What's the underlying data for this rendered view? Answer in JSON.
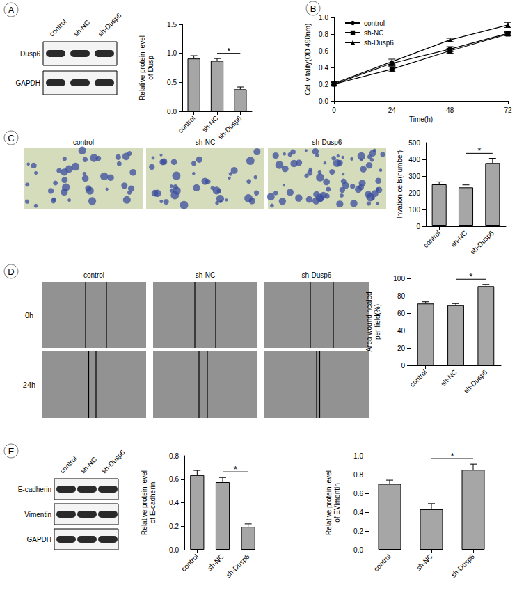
{
  "panels": {
    "labels": [
      "A",
      "B",
      "C",
      "D",
      "E"
    ],
    "lanes": [
      "control",
      "sh-NC",
      "sh-Dusp6"
    ],
    "blot_A_rows": [
      "Dusp6",
      "GAPDH"
    ],
    "wound_rows": [
      "0h",
      "24h"
    ],
    "blot_E_rows": [
      "E-cadherin",
      "Vimentin",
      "GAPDH"
    ]
  },
  "chart_data": [
    {
      "type": "bar",
      "categories": [
        "control",
        "sh-NC",
        "sh-Dusp6"
      ],
      "values": [
        0.91,
        0.87,
        0.38
      ],
      "errors": [
        0.05,
        0.04,
        0.04
      ],
      "ylabel": "Relative protein level\nof Dusp",
      "color": "#a6a6a6",
      "ylim": [
        0,
        1.5
      ],
      "yticks": [
        {
          "value": 0,
          "label": "0.0"
        },
        0.5,
        {
          "value": 1,
          "label": "1.0"
        },
        1.5
      ],
      "grid": false,
      "annotations": [
        {
          "text": "*",
          "from": "sh-NC",
          "to": "sh-Dusp6"
        }
      ]
    },
    {
      "type": "line",
      "x": [
        0,
        24,
        48,
        72
      ],
      "xlabel": "Time(h)",
      "ylabel": "Cell vitality(OD 490nm)",
      "xlim": [
        0,
        72
      ],
      "xticks": [
        0,
        24,
        48,
        72
      ],
      "ylim": [
        0,
        1
      ],
      "yticks": [
        {
          "value": 0,
          "label": "0.0"
        },
        0.2,
        0.4,
        0.6,
        0.8,
        {
          "value": 1,
          "label": "1.0"
        }
      ],
      "grid": false,
      "legend": "upper left",
      "series": [
        {
          "name": "control",
          "color": "#000000",
          "marker": "circle",
          "values": [
            0.2,
            0.45,
            0.62,
            0.81
          ],
          "errors": [
            0.02,
            0.03,
            0.03,
            0.02
          ]
        },
        {
          "name": "sh-NC",
          "color": "#000000",
          "marker": "square",
          "values": [
            0.2,
            0.38,
            0.6,
            0.8
          ],
          "errors": [
            0.02,
            0.03,
            0.03,
            0.02
          ]
        },
        {
          "name": "sh-Dusp6",
          "color": "#000000",
          "marker": "triangle",
          "values": [
            0.21,
            0.47,
            0.73,
            0.91
          ],
          "errors": [
            0.02,
            0.03,
            0.02,
            0.03
          ]
        }
      ]
    },
    {
      "type": "bar",
      "categories": [
        "control",
        "sh-NC",
        "sh-Dusp6"
      ],
      "values": [
        250,
        232,
        378
      ],
      "errors": [
        15,
        15,
        28
      ],
      "ylabel": "Invation cells(number)",
      "color": "#a6a6a6",
      "ylim": [
        0,
        500
      ],
      "yticks": [
        0,
        100,
        200,
        300,
        400,
        500
      ],
      "grid": false,
      "annotations": [
        {
          "text": "*",
          "from": "sh-NC",
          "to": "sh-Dusp6"
        }
      ]
    },
    {
      "type": "bar",
      "categories": [
        "control",
        "sh-NC",
        "sh-Dusp6"
      ],
      "values": [
        71,
        69,
        91
      ],
      "errors": [
        2,
        2,
        2
      ],
      "ylabel": "Area wound healed\nper field(%)",
      "color": "#a6a6a6",
      "ylim": [
        0,
        100
      ],
      "yticks": [
        0,
        20,
        40,
        60,
        80,
        100
      ],
      "grid": false,
      "annotations": [
        {
          "text": "*",
          "from": "sh-NC",
          "to": "sh-Dusp6"
        }
      ]
    },
    {
      "type": "bar",
      "categories": [
        "control",
        "sh-NC",
        "sh-Dusp6"
      ],
      "values": [
        0.635,
        0.575,
        0.195
      ],
      "errors": [
        0.04,
        0.04,
        0.025
      ],
      "ylabel": "Relative protein level\nof E-cadherin",
      "color": "#a6a6a6",
      "ylim": [
        0,
        0.8
      ],
      "yticks": [
        {
          "value": 0,
          "label": "0.0"
        },
        0.2,
        0.4,
        0.6,
        0.8
      ],
      "grid": false,
      "annotations": [
        {
          "text": "*",
          "from": "sh-NC",
          "to": "sh-Dusp6"
        }
      ]
    },
    {
      "type": "bar",
      "categories": [
        "control",
        "sh-NC",
        "sh-Dusp6"
      ],
      "values": [
        0.7,
        0.43,
        0.85
      ],
      "errors": [
        0.04,
        0.06,
        0.06
      ],
      "ylabel": "Relative protein level\nof EVimentin",
      "color": "#a6a6a6",
      "ylim": [
        0,
        1
      ],
      "yticks": [
        {
          "value": 0,
          "label": "0.0"
        },
        0.2,
        0.4,
        0.6,
        0.8,
        {
          "value": 1,
          "label": "1.0"
        }
      ],
      "grid": false,
      "annotations": [
        {
          "text": "*",
          "from": "sh-NC",
          "to": "sh-Dusp6"
        }
      ]
    }
  ]
}
